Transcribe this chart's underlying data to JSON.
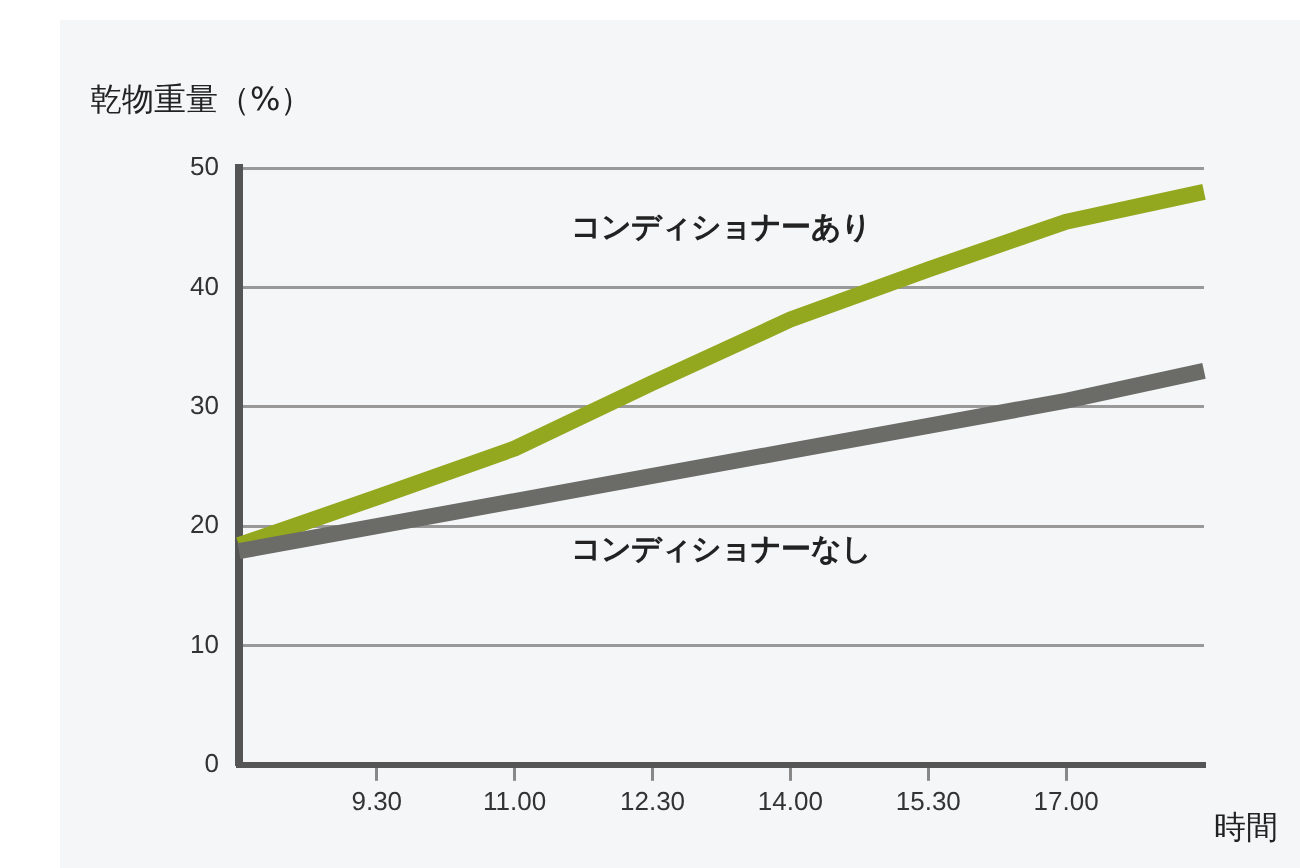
{
  "chart_data": {
    "type": "line",
    "ylabel": "乾物重量（%）",
    "xlabel": "時間",
    "categories": [
      null,
      "9.30",
      "11.00",
      "12.30",
      "14.00",
      "15.30",
      "17.00",
      null
    ],
    "ylim": [
      0,
      50
    ],
    "yticks": [
      0,
      10,
      20,
      30,
      40,
      50
    ],
    "grid": "y",
    "legend": false,
    "marker": "none",
    "line_style": "solid",
    "series": [
      {
        "name": "コンディショナーあり",
        "color": "#94a81f",
        "values": [
          18.4,
          22.4,
          26.5,
          32,
          37.3,
          41.5,
          45.5,
          48
        ]
      },
      {
        "name": "コンディショナーなし",
        "color": "#6b6b68",
        "values": [
          17.9,
          20,
          22.1,
          24.2,
          26.3,
          28.4,
          30.5,
          33
        ]
      }
    ]
  }
}
